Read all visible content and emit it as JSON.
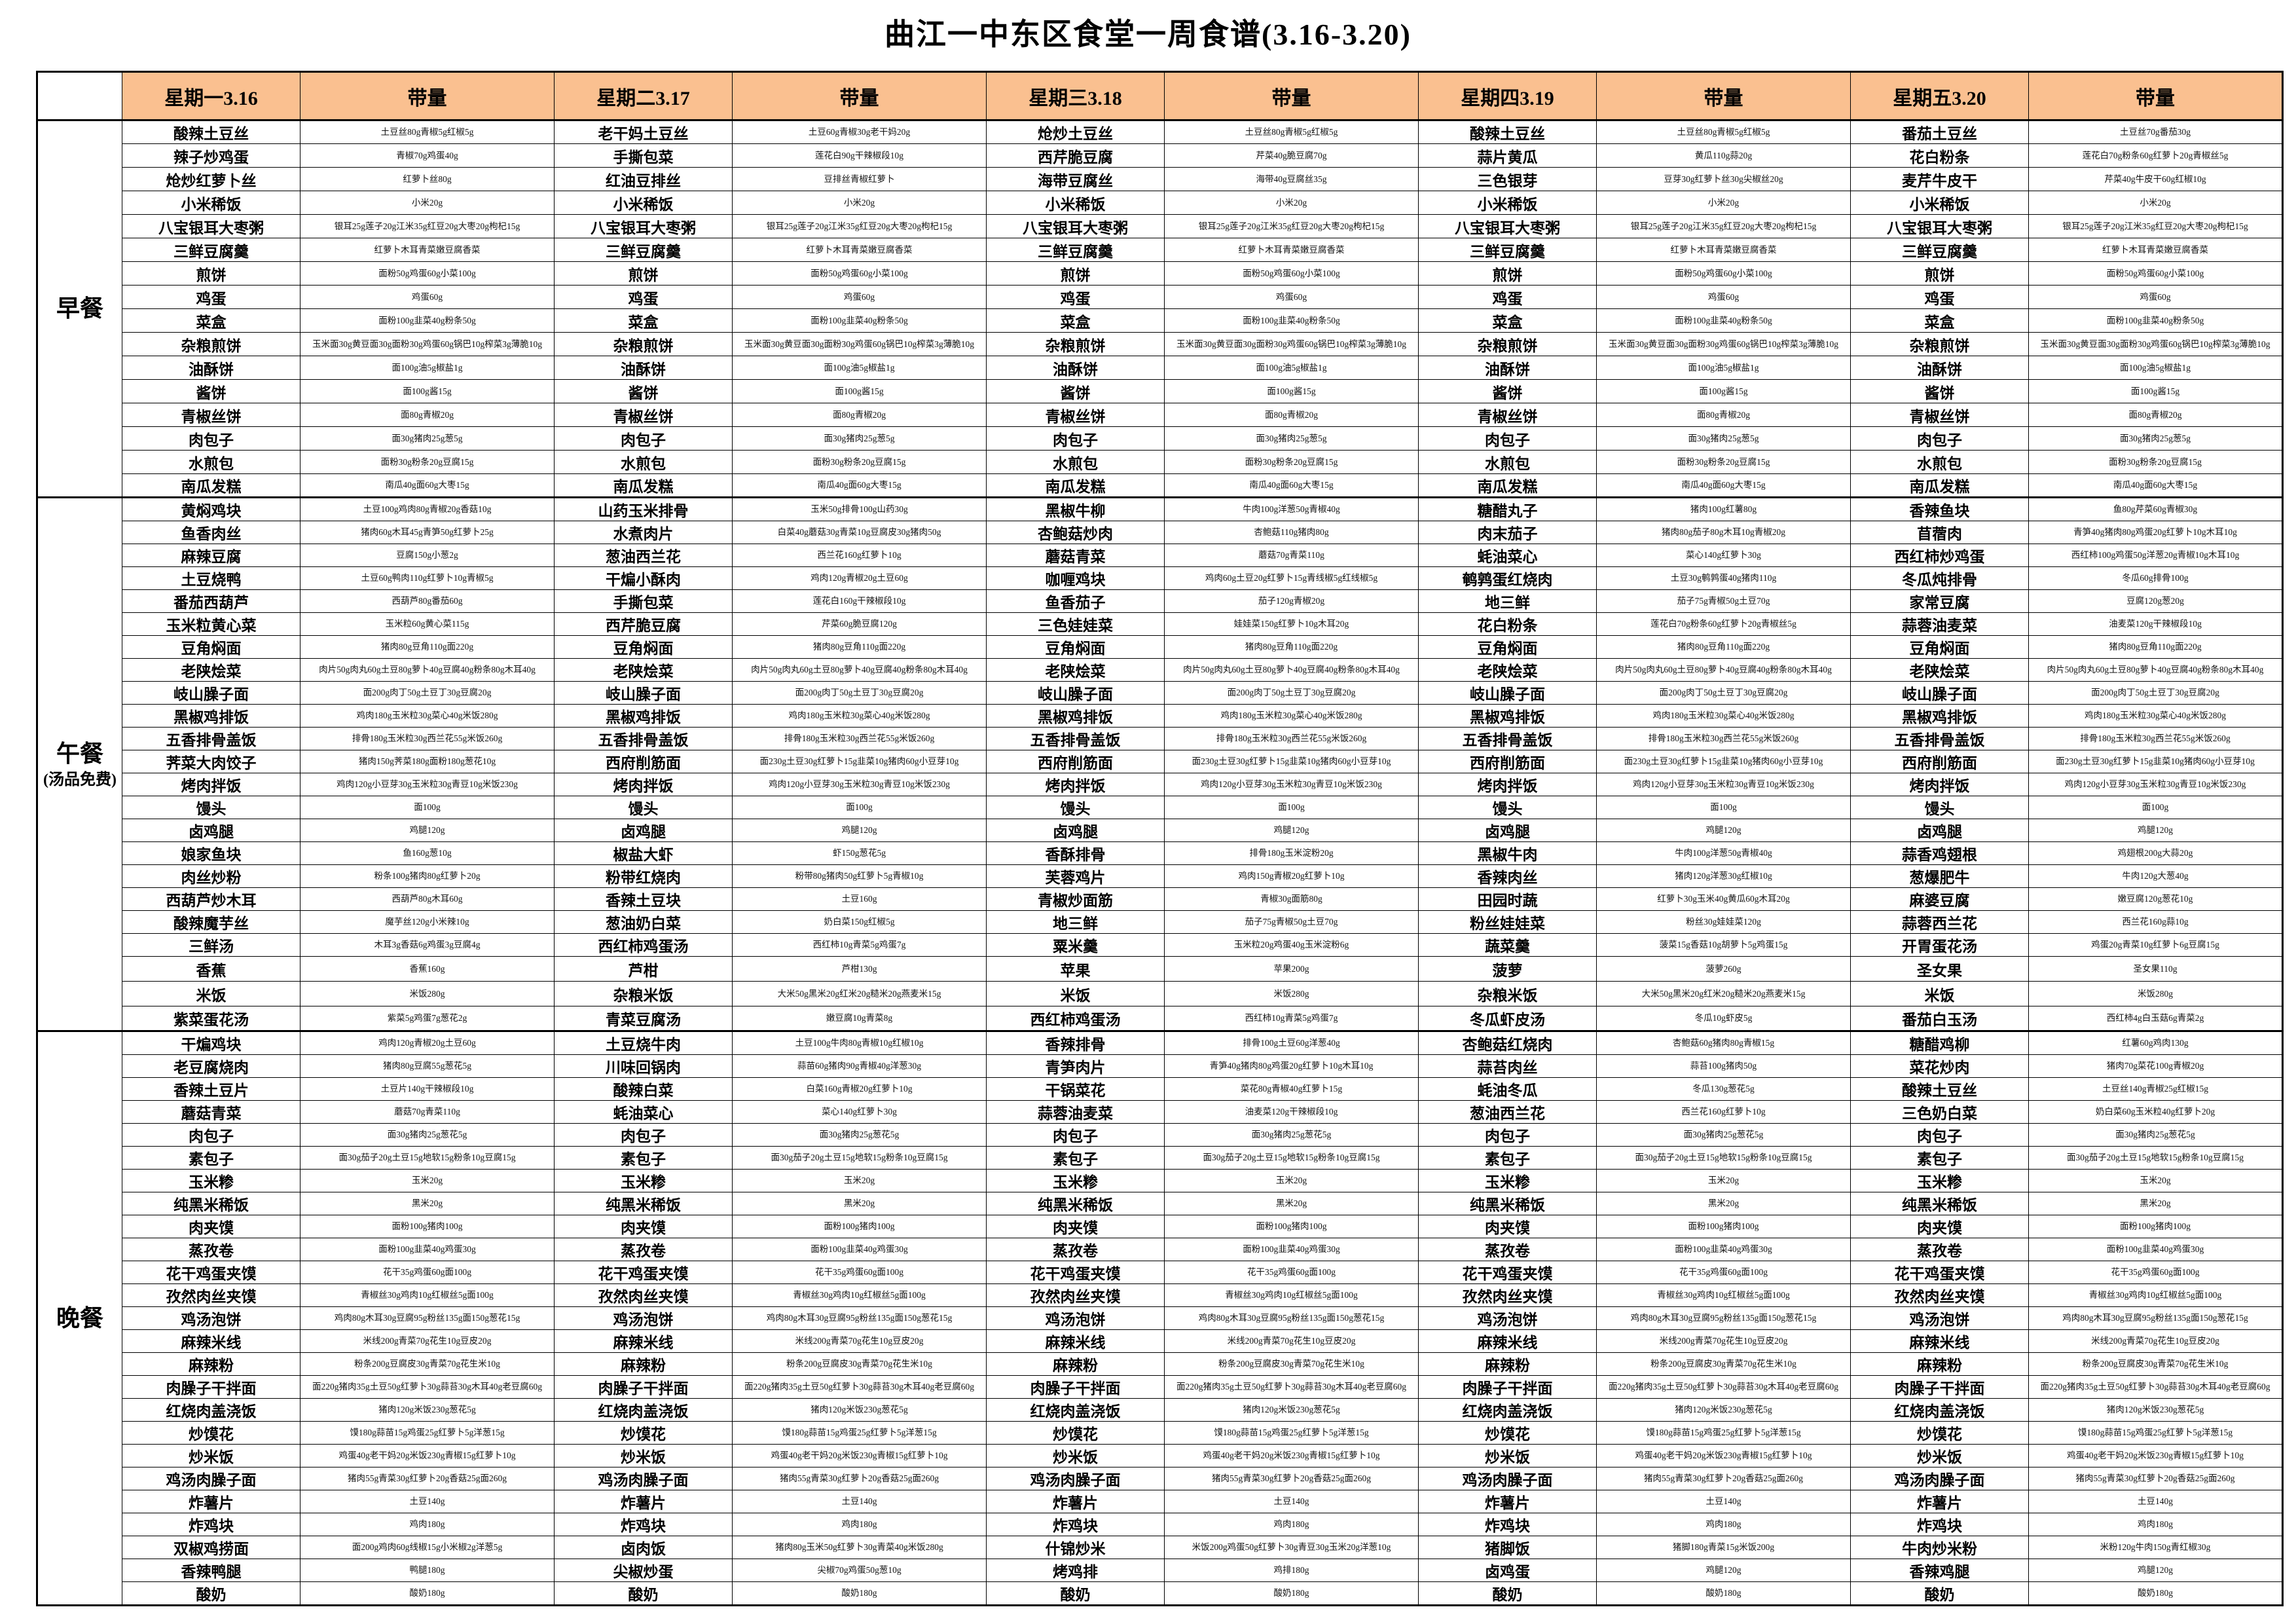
{
  "title": "曲江一中东区食堂一周食谱(3.16-3.20)",
  "colors": {
    "header_bg": "#FAC090",
    "border": "#000000",
    "page_bg": "#FFFFFF"
  },
  "header": {
    "corner": "",
    "portion_header": "带量",
    "day_headers": [
      "星期一3.16",
      "星期二3.17",
      "星期三3.18",
      "星期四3.19",
      "星期五3.20"
    ]
  },
  "sections": [
    {
      "label": "早餐",
      "sublabel": "",
      "rows": [
        [
          "酸辣土豆丝",
          "土豆丝80g青椒5g红椒5g",
          "老干妈土豆丝",
          "土豆60g青椒30g老干妈20g",
          "炝炒土豆丝",
          "土豆丝80g青椒5g红椒5g",
          "酸辣土豆丝",
          "土豆丝80g青椒5g红椒5g",
          "番茄土豆丝",
          "土豆丝70g番茄30g"
        ],
        [
          "辣子炒鸡蛋",
          "青椒70g鸡蛋40g",
          "手撕包菜",
          "莲花白90g干辣椒段10g",
          "西芹脆豆腐",
          "芹菜40g脆豆腐70g",
          "蒜片黄瓜",
          "黄瓜110g蒜20g",
          "花白粉条",
          "莲花白70g粉条60g红萝卜20g青椒丝5g"
        ],
        [
          "炝炒红萝卜丝",
          "红萝卜丝80g",
          "红油豆排丝",
          "豆排丝青椒红萝卜",
          "海带豆腐丝",
          "海带40g豆腐丝35g",
          "三色银芽",
          "豆芽30g红萝卜丝30g尖椒丝20g",
          "麦芹牛皮干",
          "芹菜40g牛皮干60g红椒10g"
        ],
        [
          "小米稀饭",
          "小米20g",
          "小米稀饭",
          "小米20g",
          "小米稀饭",
          "小米20g",
          "小米稀饭",
          "小米20g",
          "小米稀饭",
          "小米20g"
        ],
        [
          "八宝银耳大枣粥",
          "银耳25g莲子20g江米35g红豆20g大枣20g枸杞15g",
          "八宝银耳大枣粥",
          "银耳25g莲子20g江米35g红豆20g大枣20g枸杞15g",
          "八宝银耳大枣粥",
          "银耳25g莲子20g江米35g红豆20g大枣20g枸杞15g",
          "八宝银耳大枣粥",
          "银耳25g莲子20g江米35g红豆20g大枣20g枸杞15g",
          "八宝银耳大枣粥",
          "银耳25g莲子20g江米35g红豆20g大枣20g枸杞15g"
        ],
        [
          "三鲜豆腐羹",
          "红萝卜木耳青菜嫩豆腐香菜",
          "三鲜豆腐羹",
          "红萝卜木耳青菜嫩豆腐香菜",
          "三鲜豆腐羹",
          "红萝卜木耳青菜嫩豆腐香菜",
          "三鲜豆腐羹",
          "红萝卜木耳青菜嫩豆腐香菜",
          "三鲜豆腐羹",
          "红萝卜木耳青菜嫩豆腐香菜"
        ],
        [
          "煎饼",
          "面粉50g鸡蛋60g小菜100g",
          "煎饼",
          "面粉50g鸡蛋60g小菜100g",
          "煎饼",
          "面粉50g鸡蛋60g小菜100g",
          "煎饼",
          "面粉50g鸡蛋60g小菜100g",
          "煎饼",
          "面粉50g鸡蛋60g小菜100g"
        ],
        [
          "鸡蛋",
          "鸡蛋60g",
          "鸡蛋",
          "鸡蛋60g",
          "鸡蛋",
          "鸡蛋60g",
          "鸡蛋",
          "鸡蛋60g",
          "鸡蛋",
          "鸡蛋60g"
        ],
        [
          "菜盒",
          "面粉100g韭菜40g粉条50g",
          "菜盒",
          "面粉100g韭菜40g粉条50g",
          "菜盒",
          "面粉100g韭菜40g粉条50g",
          "菜盒",
          "面粉100g韭菜40g粉条50g",
          "菜盒",
          "面粉100g韭菜40g粉条50g"
        ],
        [
          "杂粮煎饼",
          "玉米面30g黄豆面30g面粉30g鸡蛋60g锅巴10g榨菜3g薄脆10g",
          "杂粮煎饼",
          "玉米面30g黄豆面30g面粉30g鸡蛋60g锅巴10g榨菜3g薄脆10g",
          "杂粮煎饼",
          "玉米面30g黄豆面30g面粉30g鸡蛋60g锅巴10g榨菜3g薄脆10g",
          "杂粮煎饼",
          "玉米面30g黄豆面30g面粉30g鸡蛋60g锅巴10g榨菜3g薄脆10g",
          "杂粮煎饼",
          "玉米面30g黄豆面30g面粉30g鸡蛋60g锅巴10g榨菜3g薄脆10g"
        ],
        [
          "油酥饼",
          "面100g油5g椒盐1g",
          "油酥饼",
          "面100g油5g椒盐1g",
          "油酥饼",
          "面100g油5g椒盐1g",
          "油酥饼",
          "面100g油5g椒盐1g",
          "油酥饼",
          "面100g油5g椒盐1g"
        ],
        [
          "酱饼",
          "面100g酱15g",
          "酱饼",
          "面100g酱15g",
          "酱饼",
          "面100g酱15g",
          "酱饼",
          "面100g酱15g",
          "酱饼",
          "面100g酱15g"
        ],
        [
          "青椒丝饼",
          "面80g青椒20g",
          "青椒丝饼",
          "面80g青椒20g",
          "青椒丝饼",
          "面80g青椒20g",
          "青椒丝饼",
          "面80g青椒20g",
          "青椒丝饼",
          "面80g青椒20g"
        ],
        [
          "肉包子",
          "面30g猪肉25g葱5g",
          "肉包子",
          "面30g猪肉25g葱5g",
          "肉包子",
          "面30g猪肉25g葱5g",
          "肉包子",
          "面30g猪肉25g葱5g",
          "肉包子",
          "面30g猪肉25g葱5g"
        ],
        [
          "水煎包",
          "面粉30g粉条20g豆腐15g",
          "水煎包",
          "面粉30g粉条20g豆腐15g",
          "水煎包",
          "面粉30g粉条20g豆腐15g",
          "水煎包",
          "面粉30g粉条20g豆腐15g",
          "水煎包",
          "面粉30g粉条20g豆腐15g"
        ],
        [
          "南瓜发糕",
          "南瓜40g面60g大枣15g",
          "南瓜发糕",
          "南瓜40g面60g大枣15g",
          "南瓜发糕",
          "南瓜40g面60g大枣15g",
          "南瓜发糕",
          "南瓜40g面60g大枣15g",
          "南瓜发糕",
          "南瓜40g面60g大枣15g"
        ]
      ]
    },
    {
      "label": "午餐",
      "sublabel": "(汤品免费)",
      "rows": [
        [
          "黄焖鸡块",
          "土豆100g鸡肉80g青椒20g香菇10g",
          "山药玉米排骨",
          "玉米50g排骨100g山药30g",
          "黑椒牛柳",
          "牛肉100g洋葱50g青椒40g",
          "糖醋丸子",
          "猪肉100g红薯80g",
          "香辣鱼块",
          "鱼80g芹菜60g青椒30g"
        ],
        [
          "鱼香肉丝",
          "猪肉60g木耳45g青笋50g红萝卜25g",
          "水煮肉片",
          "白菜40g蘑菇30g青菜10g豆腐皮30g猪肉50g",
          "杏鲍菇炒肉",
          "杏鲍菇110g猪肉80g",
          "肉末茄子",
          "猪肉80g茄子80g木耳10g青椒20g",
          "苜蓿肉",
          "青笋40g猪肉80g鸡蛋20g红萝卜10g木耳10g"
        ],
        [
          "麻辣豆腐",
          "豆腐150g小葱2g",
          "葱油西兰花",
          "西兰花160g红萝卜10g",
          "蘑菇青菜",
          "蘑菇70g青菜110g",
          "蚝油菜心",
          "菜心140g红萝卜30g",
          "西红柿炒鸡蛋",
          "西红柿100g鸡蛋50g洋葱20g青椒10g木耳10g"
        ],
        [
          "土豆烧鸭",
          "土豆60g鸭肉110g红萝卜10g青椒5g",
          "干煸小酥肉",
          "鸡肉120g青椒20g土豆60g",
          "咖喱鸡块",
          "鸡肉60g土豆20g红萝卜15g青线椒5g红线椒5g",
          "鹌鹑蛋红烧肉",
          "土豆30g鹌鹑蛋40g猪肉110g",
          "冬瓜炖排骨",
          "冬瓜60g排骨100g"
        ],
        [
          "番茄西葫芦",
          "西葫芦80g番茄60g",
          "手撕包菜",
          "莲花白160g干辣椒段10g",
          "鱼香茄子",
          "茄子120g青椒20g",
          "地三鲜",
          "茄子75g青椒50g土豆70g",
          "家常豆腐",
          "豆腐120g葱20g"
        ],
        [
          "玉米粒黄心菜",
          "玉米粒60g黄心菜115g",
          "西芹脆豆腐",
          "芹菜60g脆豆腐120g",
          "三色娃娃菜",
          "娃娃菜150g红萝卜10g木耳20g",
          "花白粉条",
          "莲花白70g粉条60g红萝卜20g青椒丝5g",
          "蒜蓉油麦菜",
          "油麦菜120g干辣椒段10g"
        ],
        [
          "豆角焖面",
          "猪肉80g豆角110g面220g",
          "豆角焖面",
          "猪肉80g豆角110g面220g",
          "豆角焖面",
          "猪肉80g豆角110g面220g",
          "豆角焖面",
          "猪肉80g豆角110g面220g",
          "豆角焖面",
          "猪肉80g豆角110g面220g"
        ],
        [
          "老陕烩菜",
          "肉片50g肉丸60g土豆80g萝卜40g豆腐40g粉条80g木耳40g",
          "老陕烩菜",
          "肉片50g肉丸60g土豆80g萝卜40g豆腐40g粉条80g木耳40g",
          "老陕烩菜",
          "肉片50g肉丸60g土豆80g萝卜40g豆腐40g粉条80g木耳40g",
          "老陕烩菜",
          "肉片50g肉丸60g土豆80g萝卜40g豆腐40g粉条80g木耳40g",
          "老陕烩菜",
          "肉片50g肉丸60g土豆80g萝卜40g豆腐40g粉条80g木耳40g"
        ],
        [
          "岐山臊子面",
          "面200g肉丁50g土豆丁30g豆腐20g",
          "岐山臊子面",
          "面200g肉丁50g土豆丁30g豆腐20g",
          "岐山臊子面",
          "面200g肉丁50g土豆丁30g豆腐20g",
          "岐山臊子面",
          "面200g肉丁50g土豆丁30g豆腐20g",
          "岐山臊子面",
          "面200g肉丁50g土豆丁30g豆腐20g"
        ],
        [
          "黑椒鸡排饭",
          "鸡肉180g玉米粒30g菜心40g米饭280g",
          "黑椒鸡排饭",
          "鸡肉180g玉米粒30g菜心40g米饭280g",
          "黑椒鸡排饭",
          "鸡肉180g玉米粒30g菜心40g米饭280g",
          "黑椒鸡排饭",
          "鸡肉180g玉米粒30g菜心40g米饭280g",
          "黑椒鸡排饭",
          "鸡肉180g玉米粒30g菜心40g米饭280g"
        ],
        [
          "五香排骨盖饭",
          "排骨180g玉米粒30g西兰花55g米饭260g",
          "五香排骨盖饭",
          "排骨180g玉米粒30g西兰花55g米饭260g",
          "五香排骨盖饭",
          "排骨180g玉米粒30g西兰花55g米饭260g",
          "五香排骨盖饭",
          "排骨180g玉米粒30g西兰花55g米饭260g",
          "五香排骨盖饭",
          "排骨180g玉米粒30g西兰花55g米饭260g"
        ],
        [
          "荠菜大肉饺子",
          "猪肉150g荠菜180g面粉180g葱花10g",
          "西府削筋面",
          "面230g土豆30g红萝卜15g韭菜10g猪肉60g小豆芽10g",
          "西府削筋面",
          "面230g土豆30g红萝卜15g韭菜10g猪肉60g小豆芽10g",
          "西府削筋面",
          "面230g土豆30g红萝卜15g韭菜10g猪肉60g小豆芽10g",
          "西府削筋面",
          "面230g土豆30g红萝卜15g韭菜10g猪肉60g小豆芽10g"
        ],
        [
          "烤肉拌饭",
          "鸡肉120g小豆芽30g玉米粒30g青豆10g米饭230g",
          "烤肉拌饭",
          "鸡肉120g小豆芽30g玉米粒30g青豆10g米饭230g",
          "烤肉拌饭",
          "鸡肉120g小豆芽30g玉米粒30g青豆10g米饭230g",
          "烤肉拌饭",
          "鸡肉120g小豆芽30g玉米粒30g青豆10g米饭230g",
          "烤肉拌饭",
          "鸡肉120g小豆芽30g玉米粒30g青豆10g米饭230g"
        ],
        [
          "馒头",
          "面100g",
          "馒头",
          "面100g",
          "馒头",
          "面100g",
          "馒头",
          "面100g",
          "馒头",
          "面100g"
        ],
        [
          "卤鸡腿",
          "鸡腿120g",
          "卤鸡腿",
          "鸡腿120g",
          "卤鸡腿",
          "鸡腿120g",
          "卤鸡腿",
          "鸡腿120g",
          "卤鸡腿",
          "鸡腿120g"
        ],
        [
          "娘家鱼块",
          "鱼160g葱10g",
          "椒盐大虾",
          "虾150g葱花5g",
          "香酥排骨",
          "排骨180g玉米淀粉20g",
          "黑椒牛肉",
          "牛肉100g洋葱50g青椒40g",
          "蒜香鸡翅根",
          "鸡翅根200g大蒜20g"
        ],
        [
          "肉丝炒粉",
          "粉条100g猪肉80g红萝卜20g",
          "粉带红烧肉",
          "粉带80g猪肉50g红萝卜5g青椒10g",
          "芙蓉鸡片",
          "鸡肉150g青椒20g红萝卜10g",
          "香辣肉丝",
          "猪肉120g洋葱30g红椒10g",
          "葱爆肥牛",
          "牛肉120g大葱40g"
        ],
        [
          "西葫芦炒木耳",
          "西葫芦80g木耳60g",
          "香辣土豆块",
          "土豆160g",
          "青椒炒面筋",
          "青椒30g面筋80g",
          "田园时蔬",
          "红萝卜30g玉米40g黄瓜60g木耳20g",
          "麻婆豆腐",
          "嫩豆腐120g葱花10g"
        ],
        [
          "酸辣魔芋丝",
          "魔芋丝120g小米辣10g",
          "葱油奶白菜",
          "奶白菜150g红椒5g",
          "地三鲜",
          "茄子75g青椒50g土豆70g",
          "粉丝娃娃菜",
          "粉丝30g娃娃菜120g",
          "蒜蓉西兰花",
          "西兰花160g蒜10g"
        ],
        [
          "三鲜汤",
          "木耳3g香菇6g鸡蛋3g豆腐4g",
          "西红柿鸡蛋汤",
          "西红柿10g青菜5g鸡蛋7g",
          "粟米羹",
          "玉米粒20g鸡蛋40g玉米淀粉6g",
          "蔬菜羹",
          "菠菜15g香菇10g胡萝卜5g鸡蛋15g",
          "开胃蛋花汤",
          "鸡蛋20g青菜10g红萝卜6g豆腐15g"
        ],
        [
          "香蕉",
          "香蕉160g",
          "芦柑",
          "芦柑130g",
          "苹果",
          "苹果200g",
          "菠萝",
          "菠萝260g",
          "圣女果",
          "圣女果110g"
        ],
        [
          "米饭",
          "米饭280g",
          "杂粮米饭",
          "大米50g黑米20g红米20g糙米20g燕麦米15g",
          "米饭",
          "米饭280g",
          "杂粮米饭",
          "大米50g黑米20g红米20g糙米20g燕麦米15g",
          "米饭",
          "米饭280g"
        ],
        [
          "紫菜蛋花汤",
          "紫菜5g鸡蛋7g葱花2g",
          "青菜豆腐汤",
          "嫩豆腐10g青菜8g",
          "西红柿鸡蛋汤",
          "西红柿10g青菜5g鸡蛋7g",
          "冬瓜虾皮汤",
          "冬瓜10g虾皮5g",
          "番茄白玉汤",
          "西红柿4g白玉菇6g青菜2g"
        ]
      ]
    },
    {
      "label": "晚餐",
      "sublabel": "",
      "rows": [
        [
          "干煸鸡块",
          "鸡肉120g青椒20g土豆60g",
          "土豆烧牛肉",
          "土豆100g牛肉80g青椒10g红椒10g",
          "香辣排骨",
          "排骨100g土豆60g洋葱40g",
          "杏鲍菇红烧肉",
          "杏鲍菇60g猪肉80g青椒15g",
          "糖醋鸡柳",
          "红薯60g鸡肉130g"
        ],
        [
          "老豆腐烧肉",
          "猪肉80g豆腐55g葱花5g",
          "川味回锅肉",
          "蒜苗60g猪肉90g青椒40g洋葱30g",
          "青笋肉片",
          "青笋40g猪肉80g鸡蛋20g红萝卜10g木耳10g",
          "蒜苔肉丝",
          "蒜苔100g猪肉50g",
          "菜花炒肉",
          "猪肉70g菜花100g青椒20g"
        ],
        [
          "香辣土豆片",
          "土豆片140g干辣椒段10g",
          "酸辣白菜",
          "白菜160g青椒20g红萝卜10g",
          "干锅菜花",
          "菜花80g青椒40g红萝卜15g",
          "蚝油冬瓜",
          "冬瓜130g葱花5g",
          "酸辣土豆丝",
          "土豆丝140g青椒25g红椒15g"
        ],
        [
          "蘑菇青菜",
          "蘑菇70g青菜110g",
          "蚝油菜心",
          "菜心140g红萝卜30g",
          "蒜蓉油麦菜",
          "油麦菜120g干辣椒段10g",
          "葱油西兰花",
          "西兰花160g红萝卜10g",
          "三色奶白菜",
          "奶白菜60g玉米粒40g红萝卜20g"
        ],
        [
          "肉包子",
          "面30g猪肉25g葱花5g",
          "肉包子",
          "面30g猪肉25g葱花5g",
          "肉包子",
          "面30g猪肉25g葱花5g",
          "肉包子",
          "面30g猪肉25g葱花5g",
          "肉包子",
          "面30g猪肉25g葱花5g"
        ],
        [
          "素包子",
          "面30g茄子20g土豆15g地软15g粉条10g豆腐15g",
          "素包子",
          "面30g茄子20g土豆15g地软15g粉条10g豆腐15g",
          "素包子",
          "面30g茄子20g土豆15g地软15g粉条10g豆腐15g",
          "素包子",
          "面30g茄子20g土豆15g地软15g粉条10g豆腐15g",
          "素包子",
          "面30g茄子20g土豆15g地软15g粉条10g豆腐15g"
        ],
        [
          "玉米糁",
          "玉米20g",
          "玉米糁",
          "玉米20g",
          "玉米糁",
          "玉米20g",
          "玉米糁",
          "玉米20g",
          "玉米糁",
          "玉米20g"
        ],
        [
          "纯黑米稀饭",
          "黑米20g",
          "纯黑米稀饭",
          "黑米20g",
          "纯黑米稀饭",
          "黑米20g",
          "纯黑米稀饭",
          "黑米20g",
          "纯黑米稀饭",
          "黑米20g"
        ],
        [
          "肉夹馍",
          "面粉100g猪肉100g",
          "肉夹馍",
          "面粉100g猪肉100g",
          "肉夹馍",
          "面粉100g猪肉100g",
          "肉夹馍",
          "面粉100g猪肉100g",
          "肉夹馍",
          "面粉100g猪肉100g"
        ],
        [
          "蒸孜卷",
          "面粉100g韭菜40g鸡蛋30g",
          "蒸孜卷",
          "面粉100g韭菜40g鸡蛋30g",
          "蒸孜卷",
          "面粉100g韭菜40g鸡蛋30g",
          "蒸孜卷",
          "面粉100g韭菜40g鸡蛋30g",
          "蒸孜卷",
          "面粉100g韭菜40g鸡蛋30g"
        ],
        [
          "花干鸡蛋夹馍",
          "花干35g鸡蛋60g面100g",
          "花干鸡蛋夹馍",
          "花干35g鸡蛋60g面100g",
          "花干鸡蛋夹馍",
          "花干35g鸡蛋60g面100g",
          "花干鸡蛋夹馍",
          "花干35g鸡蛋60g面100g",
          "花干鸡蛋夹馍",
          "花干35g鸡蛋60g面100g"
        ],
        [
          "孜然肉丝夹馍",
          "青椒丝30g鸡肉10g红椒丝5g面100g",
          "孜然肉丝夹馍",
          "青椒丝30g鸡肉10g红椒丝5g面100g",
          "孜然肉丝夹馍",
          "青椒丝30g鸡肉10g红椒丝5g面100g",
          "孜然肉丝夹馍",
          "青椒丝30g鸡肉10g红椒丝5g面100g",
          "孜然肉丝夹馍",
          "青椒丝30g鸡肉10g红椒丝5g面100g"
        ],
        [
          "鸡汤泡饼",
          "鸡肉80g木耳30g豆腐95g粉丝135g面150g葱花15g",
          "鸡汤泡饼",
          "鸡肉80g木耳30g豆腐95g粉丝135g面150g葱花15g",
          "鸡汤泡饼",
          "鸡肉80g木耳30g豆腐95g粉丝135g面150g葱花15g",
          "鸡汤泡饼",
          "鸡肉80g木耳30g豆腐95g粉丝135g面150g葱花15g",
          "鸡汤泡饼",
          "鸡肉80g木耳30g豆腐95g粉丝135g面150g葱花15g"
        ],
        [
          "麻辣米线",
          "米线200g青菜70g花生10g豆皮20g",
          "麻辣米线",
          "米线200g青菜70g花生10g豆皮20g",
          "麻辣米线",
          "米线200g青菜70g花生10g豆皮20g",
          "麻辣米线",
          "米线200g青菜70g花生10g豆皮20g",
          "麻辣米线",
          "米线200g青菜70g花生10g豆皮20g"
        ],
        [
          "麻辣粉",
          "粉条200g豆腐皮30g青菜70g花生米10g",
          "麻辣粉",
          "粉条200g豆腐皮30g青菜70g花生米10g",
          "麻辣粉",
          "粉条200g豆腐皮30g青菜70g花生米10g",
          "麻辣粉",
          "粉条200g豆腐皮30g青菜70g花生米10g",
          "麻辣粉",
          "粉条200g豆腐皮30g青菜70g花生米10g"
        ],
        [
          "肉臊子干拌面",
          "面220g猪肉35g土豆50g红萝卜30g蒜苔30g木耳40g老豆腐60g",
          "肉臊子干拌面",
          "面220g猪肉35g土豆50g红萝卜30g蒜苔30g木耳40g老豆腐60g",
          "肉臊子干拌面",
          "面220g猪肉35g土豆50g红萝卜30g蒜苔30g木耳40g老豆腐60g",
          "肉臊子干拌面",
          "面220g猪肉35g土豆50g红萝卜30g蒜苔30g木耳40g老豆腐60g",
          "肉臊子干拌面",
          "面220g猪肉35g土豆50g红萝卜30g蒜苔30g木耳40g老豆腐60g"
        ],
        [
          "红烧肉盖浇饭",
          "猪肉120g米饭230g葱花5g",
          "红烧肉盖浇饭",
          "猪肉120g米饭230g葱花5g",
          "红烧肉盖浇饭",
          "猪肉120g米饭230g葱花5g",
          "红烧肉盖浇饭",
          "猪肉120g米饭230g葱花5g",
          "红烧肉盖浇饭",
          "猪肉120g米饭230g葱花5g"
        ],
        [
          "炒馍花",
          "馍180g蒜苗15g鸡蛋25g红萝卜5g洋葱15g",
          "炒馍花",
          "馍180g蒜苗15g鸡蛋25g红萝卜5g洋葱15g",
          "炒馍花",
          "馍180g蒜苗15g鸡蛋25g红萝卜5g洋葱15g",
          "炒馍花",
          "馍180g蒜苗15g鸡蛋25g红萝卜5g洋葱15g",
          "炒馍花",
          "馍180g蒜苗15g鸡蛋25g红萝卜5g洋葱15g"
        ],
        [
          "炒米饭",
          "鸡蛋40g老干妈20g米饭230g青椒15g红萝卜10g",
          "炒米饭",
          "鸡蛋40g老干妈20g米饭230g青椒15g红萝卜10g",
          "炒米饭",
          "鸡蛋40g老干妈20g米饭230g青椒15g红萝卜10g",
          "炒米饭",
          "鸡蛋40g老干妈20g米饭230g青椒15g红萝卜10g",
          "炒米饭",
          "鸡蛋40g老干妈20g米饭230g青椒15g红萝卜10g"
        ],
        [
          "鸡汤肉臊子面",
          "猪肉55g青菜30g红萝卜20g香菇25g面260g",
          "鸡汤肉臊子面",
          "猪肉55g青菜30g红萝卜20g香菇25g面260g",
          "鸡汤肉臊子面",
          "猪肉55g青菜30g红萝卜20g香菇25g面260g",
          "鸡汤肉臊子面",
          "猪肉55g青菜30g红萝卜20g香菇25g面260g",
          "鸡汤肉臊子面",
          "猪肉55g青菜30g红萝卜20g香菇25g面260g"
        ],
        [
          "炸薯片",
          "土豆140g",
          "炸薯片",
          "土豆140g",
          "炸薯片",
          "土豆140g",
          "炸薯片",
          "土豆140g",
          "炸薯片",
          "土豆140g"
        ],
        [
          "炸鸡块",
          "鸡肉180g",
          "炸鸡块",
          "鸡肉180g",
          "炸鸡块",
          "鸡肉180g",
          "炸鸡块",
          "鸡肉180g",
          "炸鸡块",
          "鸡肉180g"
        ],
        [
          "双椒鸡捞面",
          "面200g鸡肉60g线椒15g小米椒2g洋葱5g",
          "卤肉饭",
          "猪肉80g玉米50g红萝卜30g青菜40g米饭280g",
          "什锦炒米",
          "米饭200g鸡蛋50g红萝卜30g青豆30g玉米20g洋葱10g",
          "猪脚饭",
          "猪脚180g青菜15g米饭200g",
          "牛肉炒米粉",
          "米粉120g牛肉150g青红椒30g"
        ],
        [
          "香辣鸭腿",
          "鸭腿180g",
          "尖椒炒蛋",
          "尖椒70g鸡蛋50g葱10g",
          "烤鸡排",
          "鸡排180g",
          "卤鸡蛋",
          "鸡腿120g",
          "香辣鸡腿",
          "鸡腿120g"
        ],
        [
          "酸奶",
          "酸奶180g",
          "酸奶",
          "酸奶180g",
          "酸奶",
          "酸奶180g",
          "酸奶",
          "酸奶180g",
          "酸奶",
          "酸奶180g"
        ]
      ]
    }
  ]
}
